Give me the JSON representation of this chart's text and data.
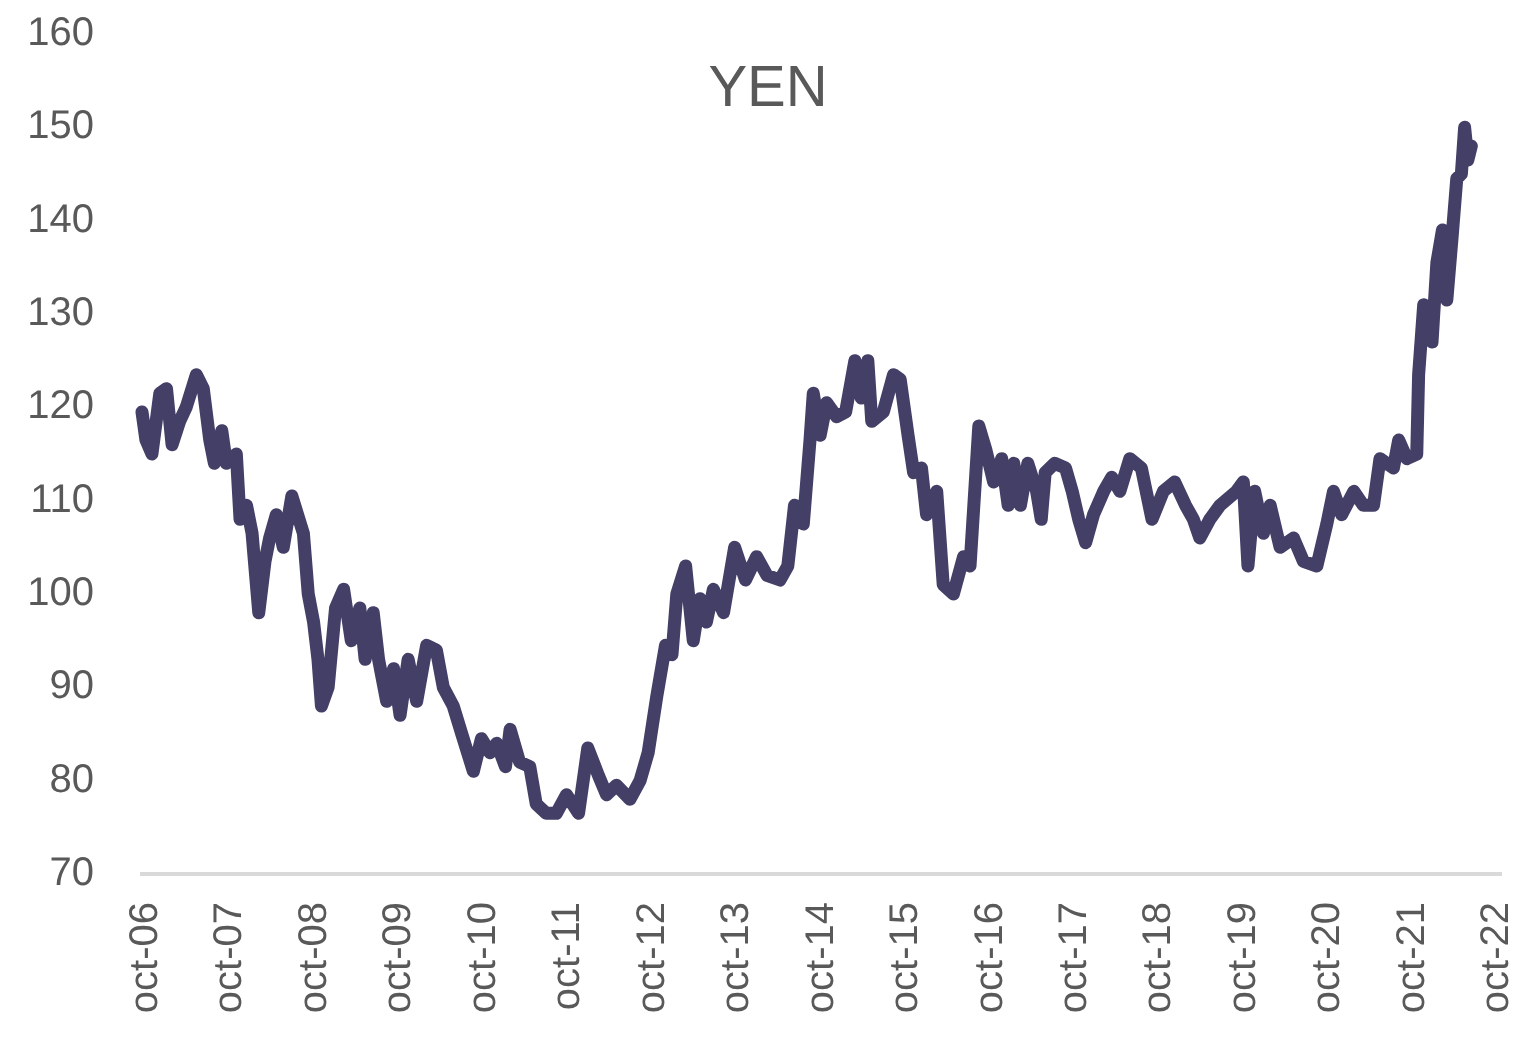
{
  "chart_data": {
    "type": "line",
    "title": "YEN",
    "x": [
      "2006-09-14",
      "2006-10-01",
      "2006-10-27",
      "2006-11-30",
      "2006-12-29",
      "2007-01-22",
      "2007-02-24",
      "2007-03-24",
      "2007-05-07",
      "2007-06-06",
      "2007-07-04",
      "2007-07-24",
      "2007-08-25",
      "2007-09-14",
      "2007-10-27",
      "2007-11-12",
      "2007-12-10",
      "2008-01-03",
      "2008-02-01",
      "2008-02-28",
      "2008-03-19",
      "2008-04-17",
      "2008-05-17",
      "2008-06-23",
      "2008-08-12",
      "2008-09-02",
      "2008-09-25",
      "2008-10-14",
      "2008-10-29",
      "2008-11-27",
      "2008-12-29",
      "2009-02-02",
      "2009-03-07",
      "2009-04-13",
      "2009-05-06",
      "2009-06-10",
      "2009-07-03",
      "2009-08-07",
      "2009-09-06",
      "2009-10-04",
      "2009-11-08",
      "2009-12-15",
      "2010-01-27",
      "2010-03-10",
      "2010-04-09",
      "2010-05-22",
      "2010-06-28",
      "2010-08-17",
      "2010-09-21",
      "2010-10-28",
      "2010-11-26",
      "2011-01-03",
      "2011-01-23",
      "2011-03-05",
      "2011-04-18",
      "2011-05-16",
      "2011-06-28",
      "2011-08-11",
      "2011-09-24",
      "2011-11-15",
      "2011-12-25",
      "2012-02-10",
      "2012-03-15",
      "2012-04-27",
      "2012-06-24",
      "2012-08-07",
      "2012-09-11",
      "2012-10-18",
      "2012-11-25",
      "2012-12-23",
      "2013-01-13",
      "2013-02-20",
      "2013-03-25",
      "2013-04-23",
      "2013-05-21",
      "2013-06-20",
      "2013-08-03",
      "2013-09-20",
      "2013-11-06",
      "2013-12-24",
      "2014-02-07",
      "2014-04-04",
      "2014-05-08",
      "2014-06-06",
      "2014-07-14",
      "2014-08-12",
      "2014-08-26",
      "2014-09-25",
      "2014-10-23",
      "2014-12-05",
      "2015-01-13",
      "2015-02-22",
      "2015-03-21",
      "2015-04-19",
      "2015-05-06",
      "2015-06-25",
      "2015-08-08",
      "2015-09-06",
      "2015-10-10",
      "2015-11-03",
      "2015-12-07",
      "2015-12-29",
      "2016-02-11",
      "2016-03-10",
      "2016-04-23",
      "2016-06-06",
      "2016-07-04",
      "2016-08-11",
      "2016-09-10",
      "2016-10-14",
      "2016-11-18",
      "2016-12-16",
      "2017-01-09",
      "2017-02-07",
      "2017-03-11",
      "2017-04-18",
      "2017-05-08",
      "2017-05-25",
      "2017-07-05",
      "2017-08-21",
      "2017-09-19",
      "2017-10-17",
      "2017-11-16",
      "2017-12-20",
      "2018-02-02",
      "2018-03-09",
      "2018-04-13",
      "2018-05-26",
      "2018-07-15",
      "2018-08-30",
      "2018-10-18",
      "2018-12-06",
      "2019-01-22",
      "2019-02-25",
      "2019-03-25",
      "2019-05-07",
      "2019-06-20",
      "2019-08-30",
      "2019-09-29",
      "2019-10-19",
      "2019-11-17",
      "2019-12-25",
      "2020-01-23",
      "2020-03-06",
      "2020-05-03",
      "2020-06-15",
      "2020-08-12",
      "2020-09-24",
      "2020-10-23",
      "2020-11-27",
      "2021-01-19",
      "2021-03-01",
      "2021-04-14",
      "2021-05-12",
      "2021-07-09",
      "2021-08-01",
      "2021-09-05",
      "2021-10-18",
      "2021-10-26",
      "2021-11-17",
      "2021-12-23",
      "2022-01-13",
      "2022-02-06",
      "2022-02-25",
      "2022-03-19",
      "2022-04-09",
      "2022-04-29",
      "2022-05-13",
      "2022-05-27",
      "2022-06-11"
    ],
    "series": [
      {
        "color": "#433f66",
        "values": [
          119.5,
          116.5,
          115,
          121.5,
          122,
          116,
          118.5,
          120,
          123.5,
          122,
          116.5,
          114,
          117.5,
          114,
          115,
          108,
          109.5,
          106.5,
          98,
          103.5,
          106,
          108.5,
          105,
          110.5,
          106.5,
          100,
          97,
          93,
          88,
          90,
          98.5,
          100.5,
          95,
          98.5,
          93,
          98,
          93,
          88.5,
          92,
          87,
          93,
          88.5,
          94.5,
          94,
          90,
          88,
          85,
          81,
          84.5,
          83,
          84,
          81.5,
          85.5,
          82,
          81.5,
          77.5,
          76.5,
          76.5,
          78.5,
          76.5,
          83.5,
          80.5,
          78.5,
          79.5,
          78,
          80,
          83,
          89,
          94.5,
          93.5,
          100,
          103,
          95,
          99.5,
          97,
          100.5,
          98,
          105,
          101.5,
          104,
          102,
          101.5,
          103,
          109.5,
          107.5,
          116.5,
          121.5,
          117,
          120.5,
          119,
          119.5,
          125,
          121,
          125,
          118.5,
          119.5,
          123.5,
          123,
          117,
          113,
          113.5,
          108.5,
          111,
          101,
          100,
          104,
          103,
          118,
          115.5,
          112,
          114.5,
          109.5,
          114,
          109.5,
          114,
          111,
          108,
          113,
          114,
          113.5,
          111,
          108,
          105.5,
          108.5,
          111,
          112.5,
          111,
          114.5,
          113.5,
          108,
          111,
          112,
          109.5,
          108,
          106,
          108,
          109.5,
          111,
          112,
          103,
          111,
          106.5,
          109.5,
          105,
          106,
          103.5,
          103,
          107.5,
          111,
          108.5,
          111,
          109.5,
          109.5,
          114.5,
          113.5,
          116.5,
          114.5,
          115,
          123.5,
          131,
          127,
          135.5,
          139,
          131.5,
          138,
          144.5,
          145,
          150,
          146.5,
          148
        ]
      }
    ],
    "xlim": [
      "2006-09-14",
      "2022-10-13"
    ],
    "xticks": [
      {
        "value": "2006-10",
        "label": "oct-06"
      },
      {
        "value": "2007-10",
        "label": "oct-07"
      },
      {
        "value": "2008-10",
        "label": "oct-08"
      },
      {
        "value": "2009-10",
        "label": "oct-09"
      },
      {
        "value": "2010-10",
        "label": "oct-10"
      },
      {
        "value": "2011-10",
        "label": "oct-11"
      },
      {
        "value": "2012-10",
        "label": "oct-12"
      },
      {
        "value": "2013-10",
        "label": "oct-13"
      },
      {
        "value": "2014-10",
        "label": "oct-14"
      },
      {
        "value": "2015-10",
        "label": "oct-15"
      },
      {
        "value": "2016-10",
        "label": "oct-16"
      },
      {
        "value": "2017-10",
        "label": "oct-17"
      },
      {
        "value": "2018-10",
        "label": "oct-18"
      },
      {
        "value": "2019-10",
        "label": "oct-19"
      },
      {
        "value": "2020-10",
        "label": "oct-20"
      },
      {
        "value": "2021-10",
        "label": "oct-21"
      },
      {
        "value": "2022-10",
        "label": "oct-22"
      }
    ],
    "ylim": [
      70,
      160
    ],
    "yticks": [
      70,
      80,
      90,
      100,
      110,
      120,
      130,
      140,
      150,
      160
    ],
    "marker": "none",
    "line_style": "solid"
  }
}
